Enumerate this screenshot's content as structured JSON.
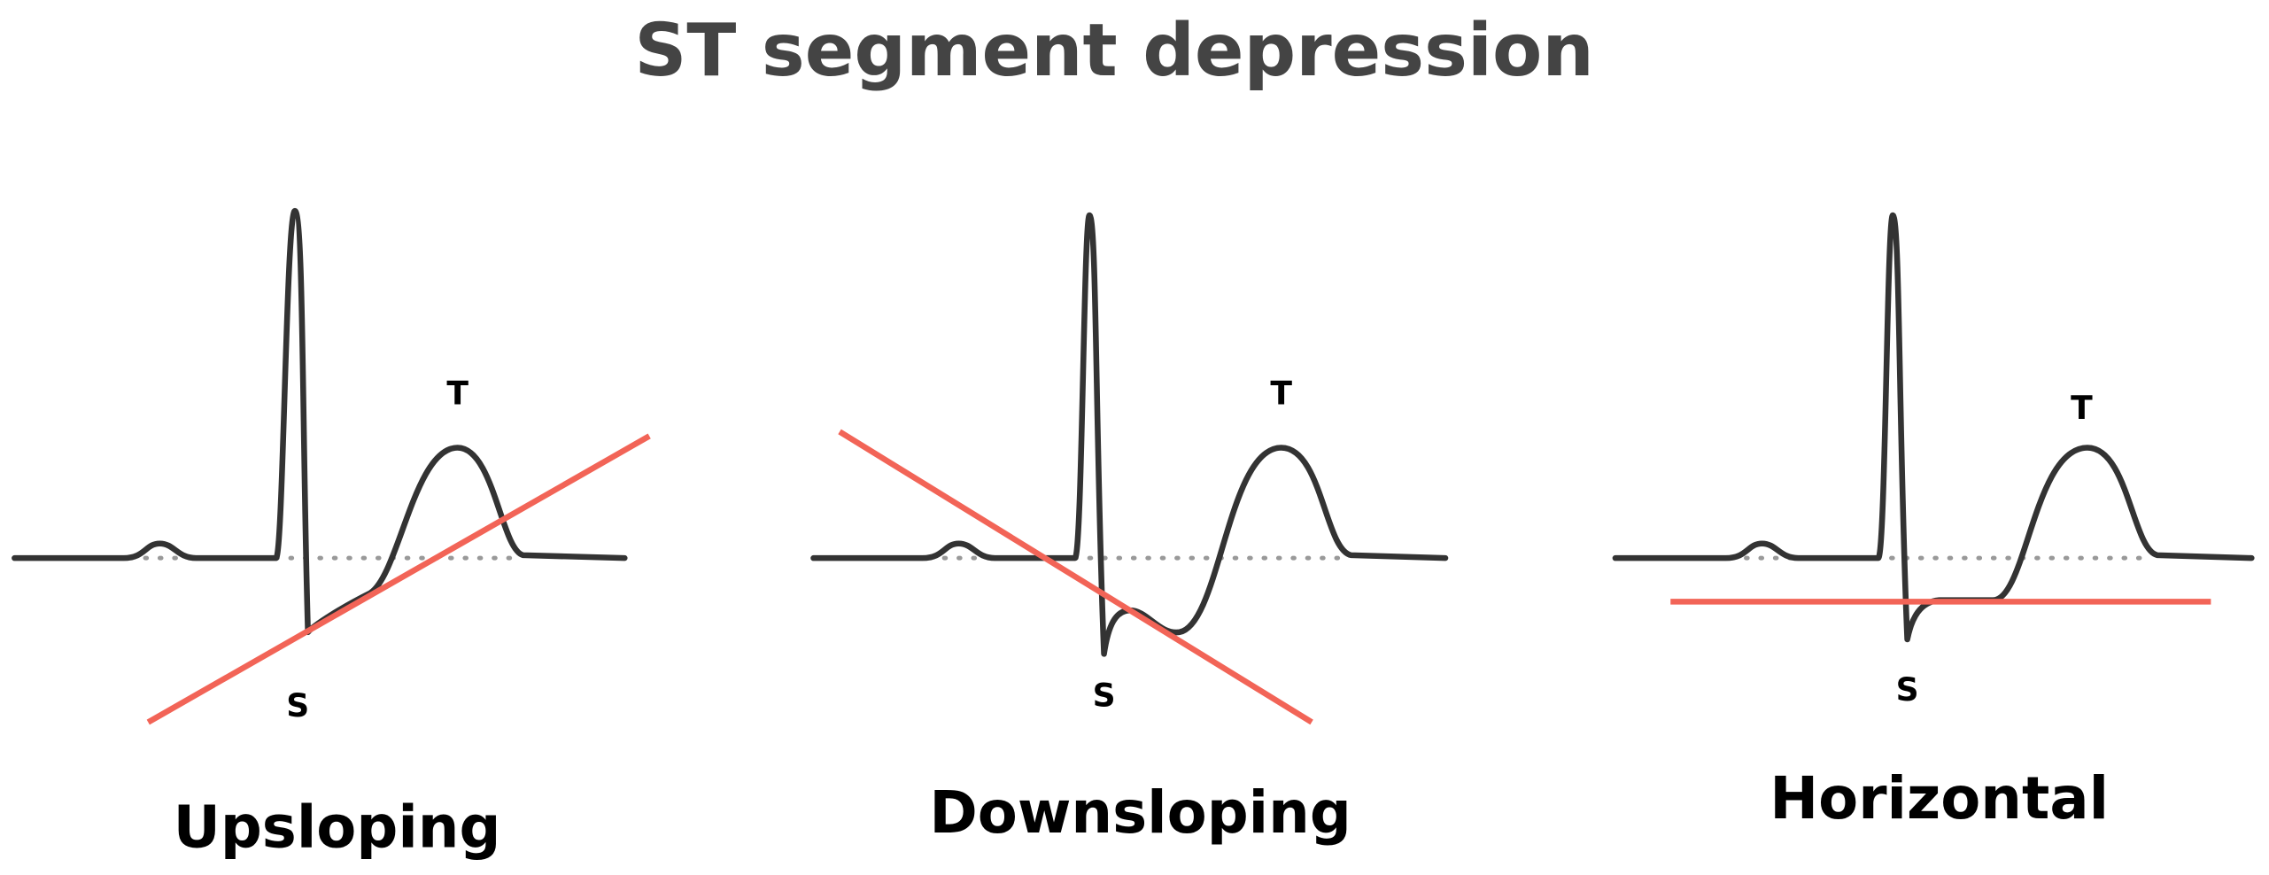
{
  "title": "ST segment depression",
  "panels": [
    {
      "label": "Upsloping",
      "s_label": "S",
      "t_label": "T"
    },
    {
      "label": "Downsloping",
      "s_label": "S",
      "t_label": "T"
    },
    {
      "label": "Horizontal",
      "s_label": "S",
      "t_label": "T"
    }
  ]
}
